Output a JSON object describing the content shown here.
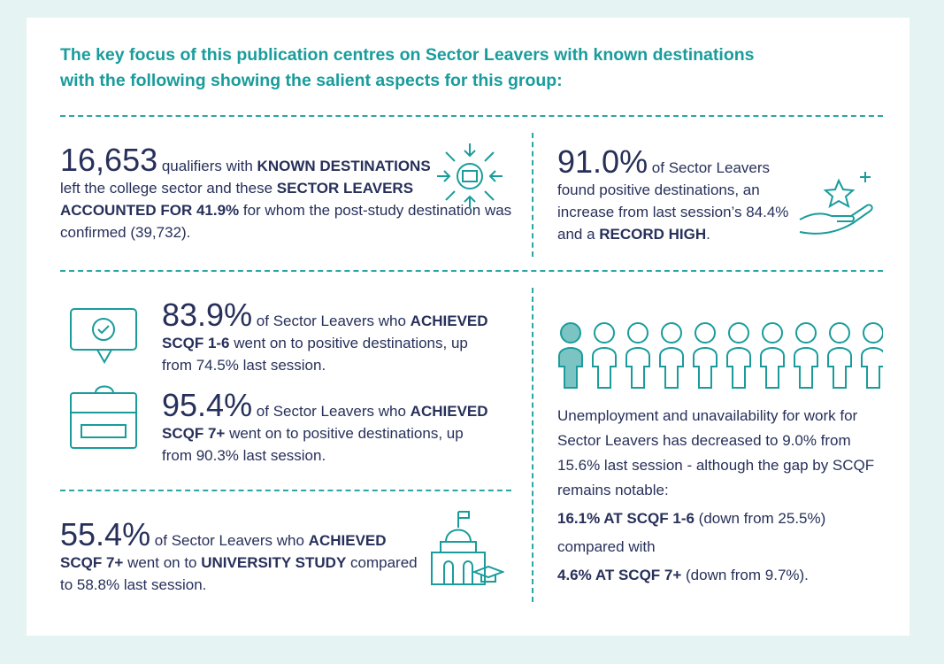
{
  "title": [
    "The key focus of this publication centres on Sector Leavers with known destinations",
    "with the following showing the salient aspects for this group:"
  ],
  "panels": [
    {
      "figure": "16,653",
      "text": [
        " qualifiers with ",
        "KNOWN DESTINATIONS",
        " left the college sector and these ",
        "SECTOR LEAVERS ACCOUNTED FOR 41.9%",
        " for whom the post-study destination was confirmed (39,732)."
      ]
    },
    {
      "figure": "91.0%",
      "text": [
        " of Sector Leavers found positive destinations, an increase from last session’s 84.4% and a ",
        "RECORD HIGH",
        "."
      ]
    },
    {
      "figure": "83.9%",
      "text": [
        " of Sector Leavers who ",
        "ACHIEVED SCQF 1-6",
        " went on to positive destinations, up from 74.5% last session."
      ]
    },
    {
      "figure": "95.4%",
      "text": [
        " of Sector Leavers who ",
        "ACHIEVED SCQF 7+",
        " went on to positive destinations, up from 90.3% last session."
      ]
    },
    {
      "figure": "55.4%",
      "text": [
        " of Sector Leavers who ",
        "ACHIEVED SCQF 7+",
        " went on to ",
        "UNIVERSITY STUDY",
        " compared to 58.8% last session."
      ]
    },
    {
      "text": [
        "Unemployment and unavailability for work for Sector Leavers has decreased to 9.0% from 15.6% last session - although the gap by SCQF remains notable:"
      ],
      "rows": [
        [
          "16.1% AT SCQF 1-6",
          " (down from 25.5%)"
        ],
        [
          "compared with"
        ],
        [
          "4.6% AT SCQF 7+",
          " (down from 9.7%)."
        ]
      ]
    }
  ]
}
